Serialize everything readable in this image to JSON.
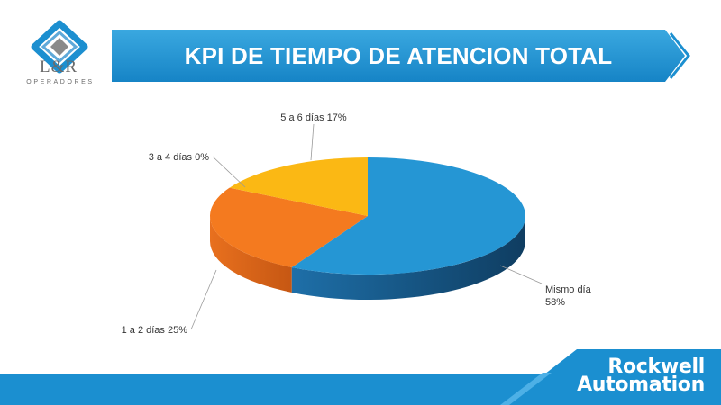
{
  "logo": {
    "brand": "L&R",
    "subtitle": "OPERADORES"
  },
  "title": "KPI DE TIEMPO DE ATENCION TOTAL",
  "footer": {
    "brand_line1": "Rockwell",
    "brand_line2": "Automation"
  },
  "colors": {
    "banner": "#1f97d4",
    "footer": "#1b8fd0"
  },
  "chart_data": {
    "type": "pie",
    "title": "",
    "slices": [
      {
        "label": "Mismo día",
        "value": 58,
        "color": "#2596d4",
        "text_lines": [
          "Mismo día",
          "58%"
        ]
      },
      {
        "label": "1 a 2 días",
        "value": 25,
        "color": "#f47a1f",
        "text_lines": [
          "1 a 2 días 25%"
        ]
      },
      {
        "label": "3 a 4 días",
        "value": 0,
        "color": "#9e9e9e",
        "text_lines": [
          "3 a 4 días 0%"
        ]
      },
      {
        "label": "5 a 6 días",
        "value": 17,
        "color": "#fbb814",
        "text_lines": [
          "5 a 6 días 17%"
        ]
      }
    ],
    "legend": "none",
    "style": "3d"
  }
}
